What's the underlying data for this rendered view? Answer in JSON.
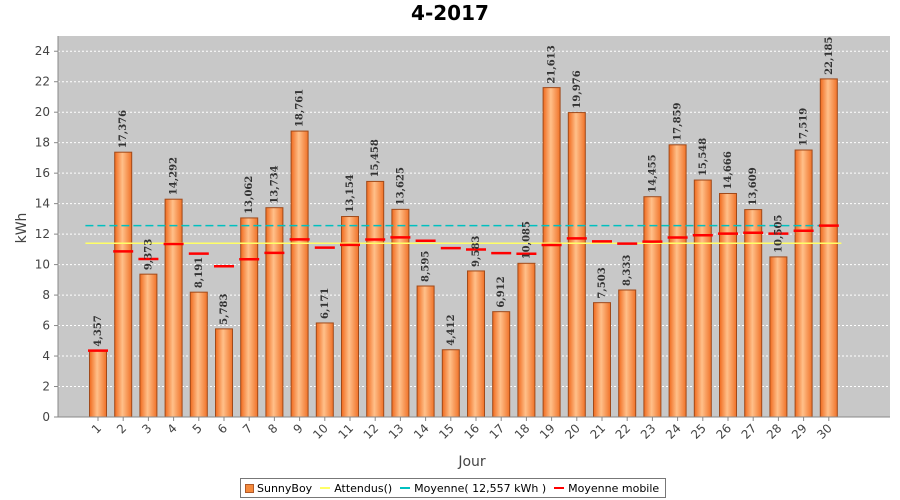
{
  "chart_data": {
    "type": "bar",
    "title": "4-2017",
    "xlabel": "Jour",
    "ylabel": "kWh",
    "ylim": [
      0,
      25
    ],
    "yticks": [
      0,
      2,
      4,
      6,
      8,
      10,
      12,
      14,
      16,
      18,
      20,
      22,
      24
    ],
    "grid": true,
    "legend_position": "bottom",
    "categories": [
      "1",
      "2",
      "3",
      "4",
      "5",
      "6",
      "7",
      "8",
      "9",
      "10",
      "11",
      "12",
      "13",
      "14",
      "15",
      "16",
      "17",
      "18",
      "19",
      "20",
      "21",
      "22",
      "23",
      "24",
      "25",
      "26",
      "27",
      "28",
      "29",
      "30"
    ],
    "series": [
      {
        "name": "SunnyBoy",
        "type": "bar",
        "color": "#f58a3c",
        "values": [
          4.357,
          17.376,
          9.373,
          14.292,
          8.191,
          5.783,
          13.062,
          13.734,
          18.761,
          6.171,
          13.154,
          15.458,
          13.625,
          8.595,
          4.412,
          9.583,
          6.912,
          10.085,
          21.613,
          19.976,
          7.503,
          8.333,
          14.455,
          17.859,
          15.548,
          14.666,
          13.609,
          10.505,
          17.519,
          22.185
        ],
        "data_labels": [
          "4,357",
          "17,376",
          "9,373",
          "14,292",
          "8,191",
          "5,783",
          "13,062",
          "13,734",
          "18,761",
          "6,171",
          "13,154",
          "15,458",
          "13,625",
          "8,595",
          "4,412",
          "9,583",
          "6,912",
          "10,085",
          "21,613",
          "19,976",
          "7,503",
          "8,333",
          "14,455",
          "17,859",
          "15,548",
          "14,666",
          "13,609",
          "10,505",
          "17,519",
          "22,185"
        ]
      },
      {
        "name": "Attendus()",
        "type": "line",
        "color": "#ffff66",
        "value": 11.4
      },
      {
        "name": "Moyenne( 12,557 kWh )",
        "type": "line",
        "color": "#00c0c0",
        "value": 12.557
      },
      {
        "name": "Moyenne mobile",
        "type": "marker",
        "color": "#ff0000",
        "values": [
          4.357,
          10.867,
          10.369,
          11.35,
          10.718,
          9.895,
          10.347,
          10.771,
          11.659,
          11.11,
          11.296,
          11.643,
          11.79,
          11.562,
          11.085,
          10.99,
          10.751,
          10.715,
          11.289,
          11.723,
          11.522,
          11.376,
          11.511,
          11.776,
          11.927,
          12.032,
          12.09,
          12.033,
          12.222,
          12.557
        ]
      }
    ]
  }
}
